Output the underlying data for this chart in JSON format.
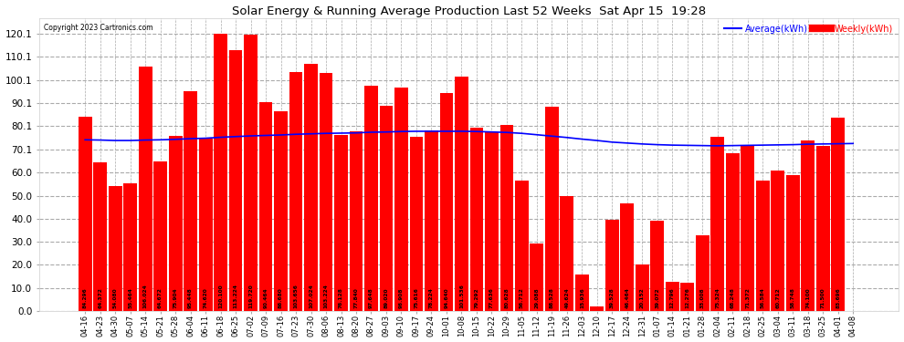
{
  "title": "Solar Energy & Running Average Production Last 52 Weeks  Sat Apr 15  19:28",
  "copyright": "Copyright 2023 Cartronics.com",
  "legend_avg": "Average(kWh)",
  "legend_weekly": "Weekly(kWh)",
  "bar_color": "#ff0000",
  "avg_line_color": "#0000ff",
  "background_color": "#ffffff",
  "plot_bg_color": "#ffffff",
  "grid_color": "#aaaaaa",
  "categories": [
    "04-16",
    "04-23",
    "04-30",
    "05-07",
    "05-14",
    "05-21",
    "05-28",
    "06-04",
    "06-11",
    "06-18",
    "06-25",
    "07-02",
    "07-09",
    "07-16",
    "07-23",
    "07-30",
    "08-06",
    "08-13",
    "08-20",
    "08-27",
    "09-03",
    "09-10",
    "09-17",
    "09-24",
    "10-01",
    "10-08",
    "10-15",
    "10-22",
    "10-29",
    "11-05",
    "11-12",
    "11-19",
    "11-26",
    "12-03",
    "12-10",
    "12-17",
    "12-24",
    "12-31",
    "01-07",
    "01-14",
    "01-21",
    "01-28",
    "02-04",
    "02-11",
    "02-18",
    "02-25",
    "03-04",
    "03-11",
    "03-18",
    "03-25",
    "04-01",
    "04-08"
  ],
  "weekly_vals": [
    84.296,
    64.372,
    54.08,
    55.464,
    106.024,
    64.672,
    75.904,
    95.448,
    74.62,
    120.1,
    113.224,
    119.72,
    90.464,
    86.68,
    103.656,
    107.024,
    103.224,
    76.128,
    77.84,
    97.648,
    89.02,
    96.908,
    75.616,
    78.224,
    94.64,
    101.536,
    79.292,
    77.636,
    80.628,
    56.712,
    29.088,
    88.528,
    49.624,
    15.936,
    1.928,
    39.528,
    46.464,
    20.152,
    39.072,
    12.796,
    12.276,
    33.008,
    75.324,
    68.248,
    71.372,
    56.584,
    60.712,
    58.748,
    74.1,
    71.5,
    83.696,
    0.0
  ],
  "avg_vals": [
    74.2,
    74.1,
    73.9,
    73.9,
    74.1,
    74.2,
    74.4,
    74.7,
    74.9,
    75.3,
    75.6,
    75.9,
    76.1,
    76.3,
    76.6,
    76.8,
    77.0,
    77.1,
    77.2,
    77.5,
    77.6,
    77.8,
    77.9,
    77.9,
    77.9,
    77.9,
    77.8,
    77.6,
    77.4,
    77.0,
    76.4,
    75.8,
    75.2,
    74.5,
    73.9,
    73.2,
    72.8,
    72.4,
    72.1,
    71.9,
    71.8,
    71.7,
    71.6,
    71.7,
    71.8,
    71.9,
    72.0,
    72.1,
    72.3,
    72.4,
    72.5,
    72.6
  ],
  "yticks": [
    0.0,
    10.0,
    20.0,
    30.0,
    40.0,
    50.0,
    60.0,
    70.1,
    80.1,
    90.1,
    100.1,
    110.1,
    120.1
  ],
  "ylim_max": 127
}
